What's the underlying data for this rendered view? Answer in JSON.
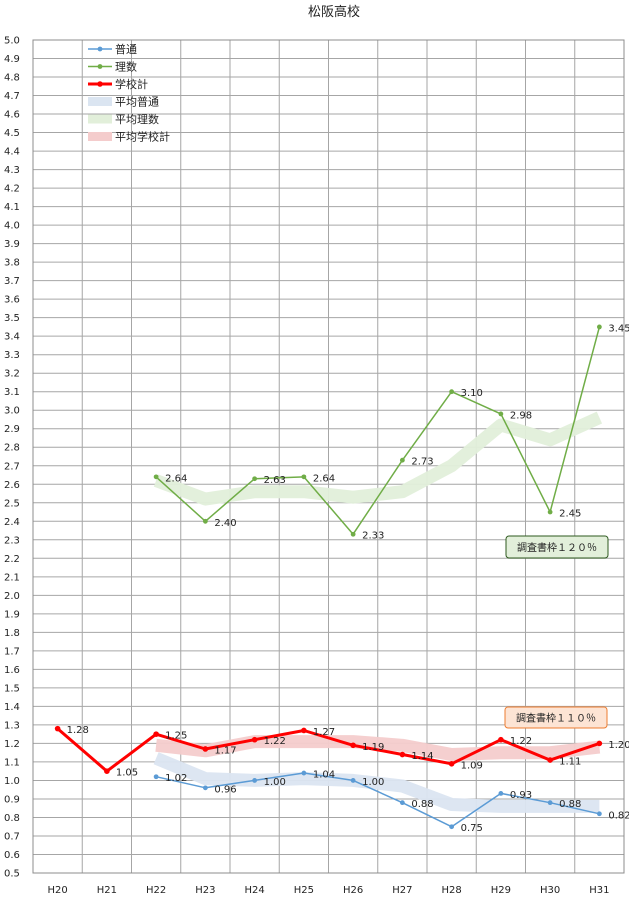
{
  "chart_data": {
    "type": "line",
    "title": "松阪高校",
    "xlabel": "",
    "ylabel": "",
    "categories": [
      "H20",
      "H21",
      "H22",
      "H23",
      "H24",
      "H25",
      "H26",
      "H27",
      "H28",
      "H29",
      "H30",
      "H31"
    ],
    "ylim": [
      0.5,
      5.0
    ],
    "ytick_step": 0.1,
    "grid": true,
    "legend_placement": "top-left",
    "series": [
      {
        "name": "普通",
        "color": "#5b9bd5",
        "style": "line-markers",
        "values": [
          null,
          null,
          1.02,
          0.96,
          1.0,
          1.04,
          1.0,
          0.88,
          0.75,
          0.93,
          0.88,
          0.82
        ],
        "labels": [
          null,
          null,
          "1.02",
          "0.96",
          "1.00",
          "1.04",
          "1.00",
          "0.88",
          "0.75",
          "0.93",
          "0.88",
          "0.82"
        ]
      },
      {
        "name": "理数",
        "color": "#70ad47",
        "style": "line-markers",
        "values": [
          null,
          null,
          2.64,
          2.4,
          2.63,
          2.64,
          2.33,
          2.73,
          3.1,
          2.98,
          2.45,
          3.45
        ],
        "labels": [
          null,
          null,
          "2.64",
          "2.40",
          "2.63",
          "2.64",
          "2.33",
          "2.73",
          "3.10",
          "2.98",
          "2.45",
          "3.45"
        ]
      },
      {
        "name": "学校計",
        "color": "#ff0000",
        "style": "bold-line-markers",
        "values": [
          1.28,
          1.05,
          1.25,
          1.17,
          1.22,
          1.27,
          1.19,
          1.14,
          1.09,
          1.22,
          1.11,
          1.2
        ],
        "labels": [
          "1.28",
          "1.05",
          "1.25",
          "1.17",
          "1.22",
          "1.27",
          "1.19",
          "1.14",
          "1.09",
          "1.22",
          "1.11",
          "1.20"
        ]
      },
      {
        "name": "平均普通",
        "color": "#dbe5f1",
        "style": "wide-band",
        "values": [
          null,
          null,
          1.12,
          1.01,
          1.0,
          1.01,
          1.0,
          0.97,
          0.87,
          0.86,
          0.86,
          0.86
        ]
      },
      {
        "name": "平均理数",
        "color": "#e2efda",
        "style": "wide-band",
        "values": [
          null,
          null,
          2.62,
          2.52,
          2.56,
          2.56,
          2.53,
          2.56,
          2.7,
          2.92,
          2.84,
          2.96
        ]
      },
      {
        "name": "平均学校計",
        "color": "#f4cccc",
        "style": "wide-band",
        "values": [
          null,
          null,
          1.19,
          1.16,
          1.21,
          1.21,
          1.21,
          1.19,
          1.14,
          1.15,
          1.15,
          1.18
        ]
      }
    ],
    "annotations": [
      {
        "text": "調査書枠１２０％",
        "color": "#e2efda",
        "border": "#2e5a1f"
      },
      {
        "text": "調査書枠１１０％",
        "color": "#fde4d4",
        "border": "#ed7d31"
      }
    ]
  }
}
